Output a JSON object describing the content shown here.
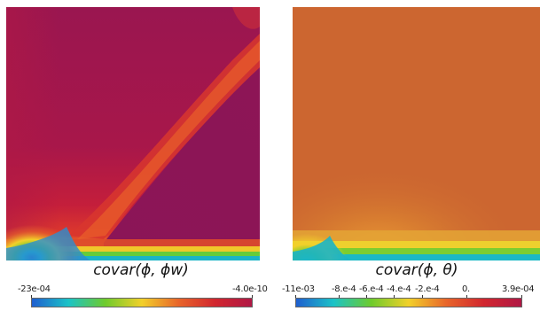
{
  "figure": {
    "left_panel": {
      "caption": "covar(ϕ, ϕw)",
      "colorbar": {
        "min_label": "-23e-04",
        "max_label": "-4.0e-10",
        "colormap": "turbo-like: blue → cyan → green → yellow → orange → red → magenta"
      }
    },
    "right_panel": {
      "caption": "covar(ϕ, θ)",
      "colorbar": {
        "tick_labels": [
          "-11e-03",
          "-8.e-4",
          "-6.e-4",
          "-4.e-4",
          "-2.e-4",
          "0.",
          "3.9e-04"
        ],
        "colormap": "turbo-like: blue → cyan → green → yellow → orange → red → magenta"
      }
    }
  },
  "colors": {
    "magenta": "#8f1653",
    "crimson": "#b01845",
    "red": "#d1262f",
    "orange": "#e8652a",
    "yellow": "#f2d02a",
    "green": "#6ecb2c",
    "cyan": "#1bc3c7",
    "blue": "#1f5ecf",
    "field_orange": "#cc6630"
  }
}
